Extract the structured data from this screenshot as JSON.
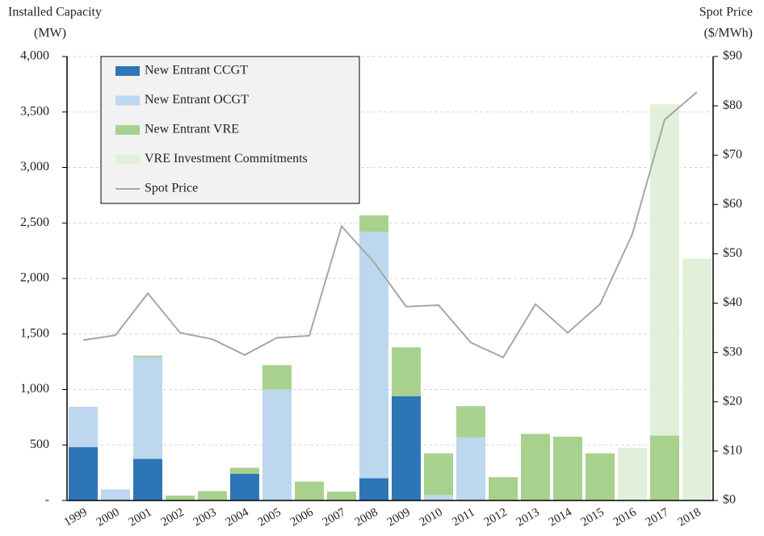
{
  "chart_data": {
    "type": "bar",
    "stacked": true,
    "ylabel": [
      "Installed Capacity",
      "(MW)"
    ],
    "y2label": [
      "Spot Price",
      "($/MWh)"
    ],
    "categories": [
      "1999",
      "2000",
      "2001",
      "2002",
      "2003",
      "2004",
      "2005",
      "2006",
      "2007",
      "2008",
      "2009",
      "2010",
      "2011",
      "2012",
      "2013",
      "2014",
      "2015",
      "2016",
      "2017",
      "2018"
    ],
    "series": [
      {
        "name": "New Entrant CCGT",
        "color": "#2e75b6",
        "values": [
          480,
          null,
          375,
          null,
          null,
          240,
          null,
          null,
          null,
          200,
          940,
          null,
          null,
          null,
          null,
          null,
          null,
          null,
          null,
          null
        ]
      },
      {
        "name": "New Entrant OCGT",
        "color": "#bdd7ee",
        "values": [
          365,
          100,
          915,
          null,
          null,
          null,
          1000,
          null,
          null,
          2220,
          null,
          50,
          570,
          null,
          null,
          null,
          null,
          null,
          null,
          null
        ]
      },
      {
        "name": "New Entrant VRE",
        "color": "#a9d18e",
        "values": [
          null,
          null,
          15,
          45,
          85,
          55,
          220,
          170,
          80,
          150,
          440,
          375,
          280,
          210,
          600,
          575,
          425,
          null,
          585,
          null
        ]
      },
      {
        "name": "VRE Investment Commitments",
        "color": "#e2f0d9",
        "values": [
          null,
          null,
          null,
          null,
          null,
          null,
          null,
          null,
          null,
          null,
          null,
          null,
          null,
          null,
          null,
          null,
          null,
          475,
          2985,
          2180
        ]
      },
      {
        "name": "Spot Price",
        "type": "line",
        "axis": "y2",
        "color": "#a6a6a6",
        "values": [
          32.5,
          33.5,
          42,
          34,
          32.7,
          29.5,
          33,
          33.4,
          55.6,
          48.3,
          39.3,
          39.6,
          32,
          29,
          39.8,
          34,
          39.8,
          54,
          77.2,
          82.8
        ]
      }
    ],
    "ylim": [
      0,
      4000
    ],
    "yticks": [
      {
        "value": 0,
        "label": "-"
      },
      500,
      {
        "value": 1000,
        "label": "1,000"
      },
      {
        "value": 1500,
        "label": "1,500"
      },
      {
        "value": 2000,
        "label": "2,000"
      },
      {
        "value": 2500,
        "label": "2,500"
      },
      {
        "value": 3000,
        "label": "3,000"
      },
      {
        "value": 3500,
        "label": "3,500"
      },
      {
        "value": 4000,
        "label": "4,000"
      }
    ],
    "y2lim": [
      0,
      90
    ],
    "y2ticks": [
      {
        "value": 0,
        "label": "$0"
      },
      {
        "value": 10,
        "label": "$10"
      },
      {
        "value": 20,
        "label": "$20"
      },
      {
        "value": 30,
        "label": "$30"
      },
      {
        "value": 40,
        "label": "$40"
      },
      {
        "value": 50,
        "label": "$50"
      },
      {
        "value": 60,
        "label": "$60"
      },
      {
        "value": 70,
        "label": "$70"
      },
      {
        "value": 80,
        "label": "$80"
      },
      {
        "value": 90,
        "label": "$90"
      }
    ],
    "grid": true,
    "legend": "upper left"
  }
}
